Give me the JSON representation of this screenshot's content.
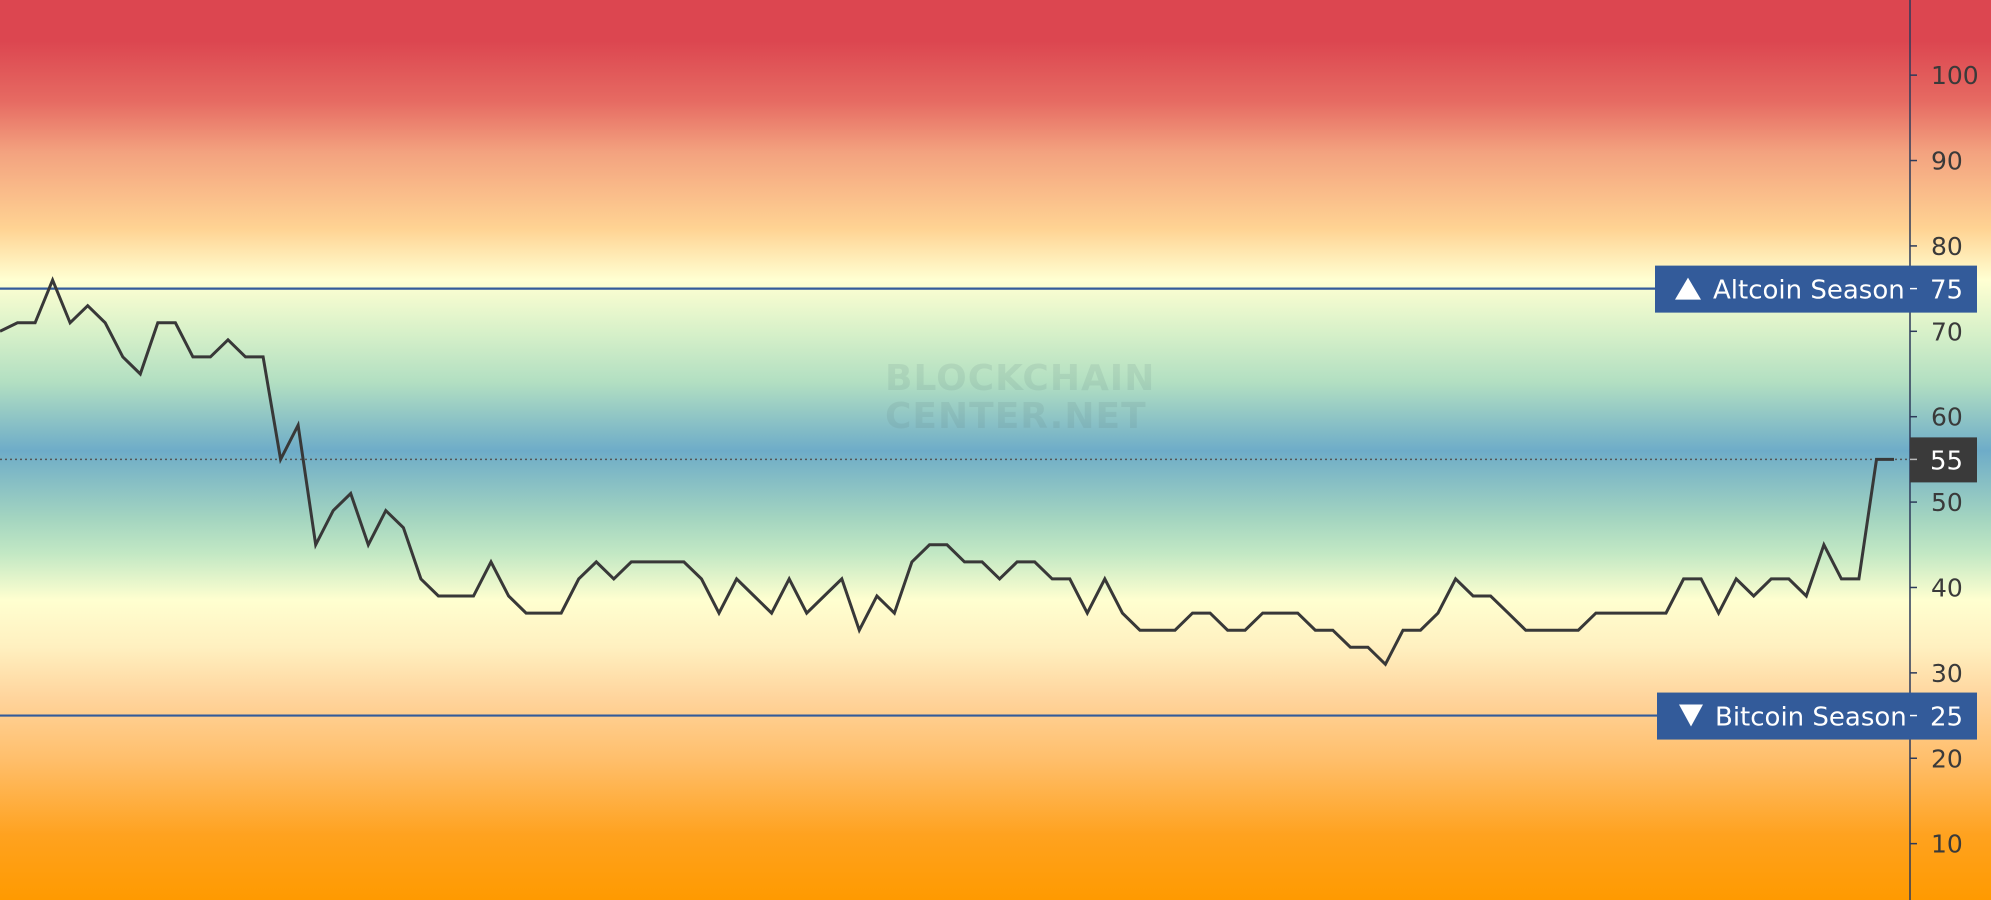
{
  "chart_data": {
    "type": "line",
    "title": "",
    "xlabel": "",
    "ylabel": "",
    "ylim": [
      3.4,
      108.8
    ],
    "y_ticks": [
      10,
      20,
      30,
      40,
      50,
      60,
      70,
      80,
      90,
      100
    ],
    "grid": false,
    "y_axis_position": "right",
    "values": [
      70,
      71,
      71,
      76,
      71,
      73,
      71,
      67,
      65,
      71,
      71,
      67,
      67,
      69,
      67,
      67,
      55,
      59,
      45,
      49,
      51,
      45,
      49,
      47,
      41,
      39,
      39,
      39,
      43,
      39,
      37,
      37,
      37,
      41,
      43,
      41,
      43,
      43,
      43,
      43,
      41,
      37,
      41,
      39,
      37,
      41,
      37,
      39,
      41,
      35,
      39,
      37,
      43,
      45,
      45,
      43,
      43,
      41,
      43,
      43,
      41,
      41,
      37,
      41,
      37,
      35,
      35,
      35,
      37,
      37,
      35,
      35,
      37,
      37,
      37,
      35,
      35,
      33,
      33,
      31,
      35,
      35,
      37,
      41,
      39,
      39,
      37,
      35,
      35,
      35,
      35,
      37,
      37,
      37,
      37,
      37,
      41,
      41,
      37,
      41,
      39,
      41,
      41,
      39,
      45,
      41,
      41,
      55,
      55
    ],
    "current_value": 55,
    "current_value_label": "55",
    "line_color": "#383838",
    "reference_lines": [
      {
        "value": 75,
        "label": "Altcoin Season",
        "value_label": "75",
        "icon": "triangle-up-icon",
        "color": "#335b9a"
      },
      {
        "value": 25,
        "label": "Bitcoin Season",
        "value_label": "25",
        "icon": "triangle-down-icon",
        "color": "#335b9a"
      }
    ],
    "background_gradient": [
      {
        "value": 104,
        "color": "#dc4650"
      },
      {
        "value": 97,
        "color": "#e66a62"
      },
      {
        "value": 91,
        "color": "#f3a27f"
      },
      {
        "value": 82,
        "color": "#ffd393"
      },
      {
        "value": 76,
        "color": "#ffffd2"
      },
      {
        "value": 70,
        "color": "#d8f1c9"
      },
      {
        "value": 64,
        "color": "#b2dfc2"
      },
      {
        "value": 56,
        "color": "#6eacc8"
      },
      {
        "value": 48,
        "color": "#a4d5c0"
      },
      {
        "value": 44,
        "color": "#c2e8c4"
      },
      {
        "value": 38.5,
        "color": "#ffffd0"
      },
      {
        "value": 33,
        "color": "#fff0c0"
      },
      {
        "value": 27,
        "color": "#ffd49c"
      },
      {
        "value": 20,
        "color": "#ffbf6c"
      },
      {
        "value": 11,
        "color": "#ffa21f"
      },
      {
        "value": 3.4,
        "color": "#ff9a00"
      }
    ]
  },
  "watermark": {
    "line1": "BLOCKCHAIN",
    "line2": "CENTER.NET"
  }
}
